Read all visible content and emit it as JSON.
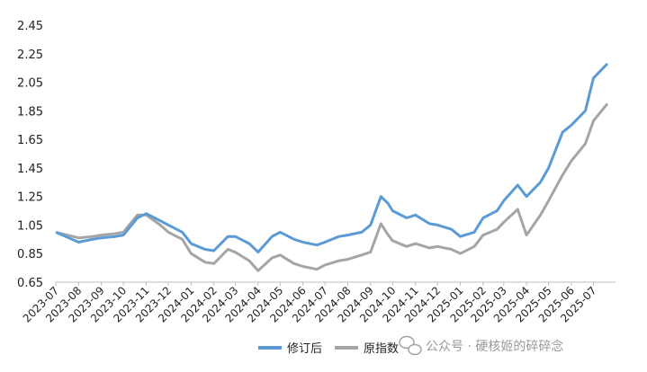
{
  "chart_data": {
    "type": "line",
    "title": "",
    "xlabel": "",
    "ylabel": "",
    "ylim": [
      0.65,
      2.45
    ],
    "y_ticks": [
      "0.65",
      "0.85",
      "1.05",
      "1.25",
      "1.45",
      "1.65",
      "1.85",
      "2.05",
      "2.25",
      "2.45"
    ],
    "x_ticks": [
      "2023-07",
      "2023-08",
      "2023-09",
      "2023-10",
      "2023-11",
      "2023-12",
      "2024-01",
      "2024-02",
      "2024-03",
      "2024-04",
      "2024-05",
      "2024-06",
      "2024-07",
      "2024-08",
      "2024-09",
      "2024-10",
      "2024-11",
      "2024-12",
      "2025-01",
      "2025-02",
      "2025-03",
      "2025-04",
      "2025-05",
      "2025-06",
      "2025-07"
    ],
    "grid": false,
    "legend_position": "bottom",
    "series": [
      {
        "name": "修订后",
        "color": "#5b9bd5",
        "points": [
          [
            "2023-07",
            1.0
          ],
          [
            "2023-08",
            0.93
          ],
          [
            "2023-08-20",
            0.95
          ],
          [
            "2023-09",
            0.96
          ],
          [
            "2023-09-20",
            0.97
          ],
          [
            "2023-10",
            0.98
          ],
          [
            "2023-10-20",
            1.1
          ],
          [
            "2023-11",
            1.13
          ],
          [
            "2023-11-20",
            1.08
          ],
          [
            "2023-12",
            1.05
          ],
          [
            "2023-12-20",
            1.0
          ],
          [
            "2024-01",
            0.92
          ],
          [
            "2024-01-20",
            0.88
          ],
          [
            "2024-02",
            0.87
          ],
          [
            "2024-02-20",
            0.97
          ],
          [
            "2024-03",
            0.97
          ],
          [
            "2024-03-20",
            0.92
          ],
          [
            "2024-04",
            0.86
          ],
          [
            "2024-04-20",
            0.97
          ],
          [
            "2024-05",
            1.0
          ],
          [
            "2024-05-20",
            0.95
          ],
          [
            "2024-06",
            0.93
          ],
          [
            "2024-06-20",
            0.91
          ],
          [
            "2024-07",
            0.93
          ],
          [
            "2024-07-20",
            0.97
          ],
          [
            "2024-08",
            0.98
          ],
          [
            "2024-08-20",
            1.0
          ],
          [
            "2024-09",
            1.05
          ],
          [
            "2024-09-15",
            1.25
          ],
          [
            "2024-09-25",
            1.2
          ],
          [
            "2024-10",
            1.15
          ],
          [
            "2024-10-20",
            1.1
          ],
          [
            "2024-11",
            1.12
          ],
          [
            "2024-11-20",
            1.06
          ],
          [
            "2024-12",
            1.05
          ],
          [
            "2024-12-20",
            1.02
          ],
          [
            "2025-01",
            0.97
          ],
          [
            "2025-01-20",
            1.0
          ],
          [
            "2025-02",
            1.1
          ],
          [
            "2025-02-20",
            1.15
          ],
          [
            "2025-03",
            1.22
          ],
          [
            "2025-03-20",
            1.33
          ],
          [
            "2025-04",
            1.25
          ],
          [
            "2025-04-20",
            1.35
          ],
          [
            "2025-05",
            1.45
          ],
          [
            "2025-05-20",
            1.7
          ],
          [
            "2025-06",
            1.75
          ],
          [
            "2025-06-20",
            1.85
          ],
          [
            "2025-07",
            2.08
          ],
          [
            "2025-07-20",
            2.18
          ]
        ]
      },
      {
        "name": "原指数",
        "color": "#a5a5a5",
        "points": [
          [
            "2023-07",
            1.0
          ],
          [
            "2023-08",
            0.96
          ],
          [
            "2023-08-20",
            0.97
          ],
          [
            "2023-09",
            0.98
          ],
          [
            "2023-09-20",
            0.99
          ],
          [
            "2023-10",
            1.0
          ],
          [
            "2023-10-20",
            1.12
          ],
          [
            "2023-11",
            1.12
          ],
          [
            "2023-11-20",
            1.05
          ],
          [
            "2023-12",
            1.0
          ],
          [
            "2023-12-20",
            0.95
          ],
          [
            "2024-01",
            0.85
          ],
          [
            "2024-01-20",
            0.79
          ],
          [
            "2024-02",
            0.78
          ],
          [
            "2024-02-20",
            0.88
          ],
          [
            "2024-03",
            0.86
          ],
          [
            "2024-03-20",
            0.8
          ],
          [
            "2024-04",
            0.73
          ],
          [
            "2024-04-20",
            0.82
          ],
          [
            "2024-05",
            0.84
          ],
          [
            "2024-05-20",
            0.78
          ],
          [
            "2024-06",
            0.76
          ],
          [
            "2024-06-20",
            0.74
          ],
          [
            "2024-07",
            0.77
          ],
          [
            "2024-07-20",
            0.8
          ],
          [
            "2024-08",
            0.81
          ],
          [
            "2024-08-20",
            0.84
          ],
          [
            "2024-09",
            0.86
          ],
          [
            "2024-09-15",
            1.06
          ],
          [
            "2024-09-25",
            0.98
          ],
          [
            "2024-10",
            0.94
          ],
          [
            "2024-10-20",
            0.9
          ],
          [
            "2024-11",
            0.92
          ],
          [
            "2024-11-20",
            0.89
          ],
          [
            "2024-12",
            0.9
          ],
          [
            "2024-12-20",
            0.88
          ],
          [
            "2025-01",
            0.85
          ],
          [
            "2025-01-20",
            0.9
          ],
          [
            "2025-02",
            0.98
          ],
          [
            "2025-02-20",
            1.02
          ],
          [
            "2025-03",
            1.07
          ],
          [
            "2025-03-20",
            1.16
          ],
          [
            "2025-04",
            0.98
          ],
          [
            "2025-04-20",
            1.12
          ],
          [
            "2025-05",
            1.22
          ],
          [
            "2025-05-20",
            1.4
          ],
          [
            "2025-06",
            1.5
          ],
          [
            "2025-06-20",
            1.62
          ],
          [
            "2025-07",
            1.78
          ],
          [
            "2025-07-20",
            1.9
          ]
        ]
      }
    ]
  },
  "watermark": {
    "text": "公众号 · 硬核姬的碎碎念",
    "icon": "wechat-icon"
  }
}
